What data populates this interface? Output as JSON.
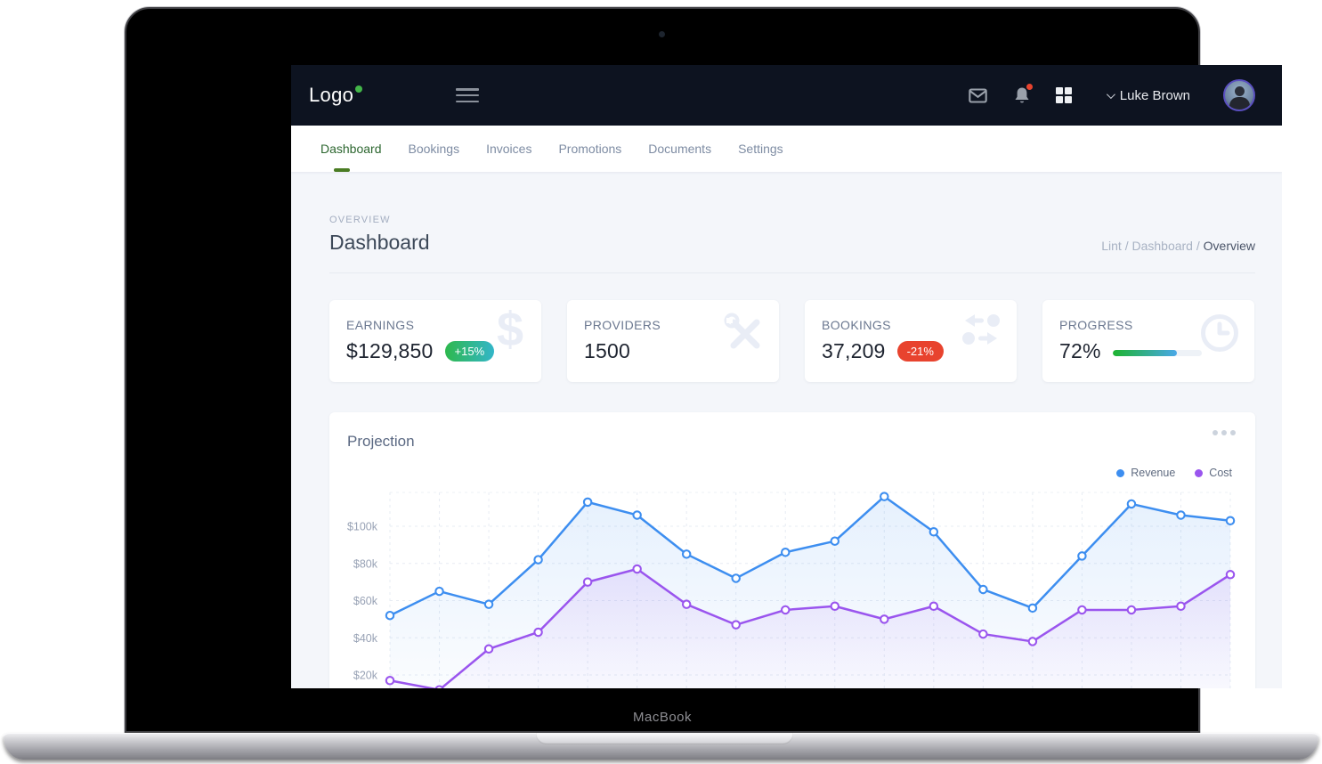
{
  "device": {
    "label": "MacBook"
  },
  "header": {
    "logo_text": "Logo",
    "user_name": "Luke Brown",
    "icons": [
      "mail-icon",
      "bell-icon",
      "apps-grid-icon",
      "chevron-down-icon",
      "avatar"
    ]
  },
  "nav": {
    "tabs": [
      {
        "label": "Dashboard",
        "active": true
      },
      {
        "label": "Bookings",
        "active": false
      },
      {
        "label": "Invoices",
        "active": false
      },
      {
        "label": "Promotions",
        "active": false
      },
      {
        "label": "Documents",
        "active": false
      },
      {
        "label": "Settings",
        "active": false
      }
    ]
  },
  "page": {
    "eyebrow": "OVERVIEW",
    "title": "Dashboard",
    "breadcrumb": {
      "trail": "Lint / Dashboard / ",
      "current": "Overview"
    }
  },
  "stats": {
    "cards": [
      {
        "label": "EARNINGS",
        "value": "$129,850",
        "badge": "+15%",
        "badge_type": "positive",
        "icon": "dollar-icon"
      },
      {
        "label": "PROVIDERS",
        "value": "1500",
        "icon": "tools-icon"
      },
      {
        "label": "BOOKINGS",
        "value": "37,209",
        "badge": "-21%",
        "badge_type": "negative",
        "icon": "exchange-arrows-icon"
      },
      {
        "label": "PROGRESS",
        "value": "72%",
        "progress_percent": 72,
        "icon": "clock-icon"
      }
    ]
  },
  "projection": {
    "title": "Projection",
    "menu_icon": "ellipsis-icon"
  },
  "chart_data": {
    "type": "line",
    "title": "Projection",
    "legend_position": "top-right",
    "grid": "dashed",
    "x_axis_labels_visible": false,
    "x_point_count": 18,
    "y_unit": "$k",
    "y_ticks": [
      {
        "label": "$100k",
        "value": 100
      },
      {
        "label": "$80k",
        "value": 80
      },
      {
        "label": "$60k",
        "value": 60
      },
      {
        "label": "$40k",
        "value": 40
      },
      {
        "label": "$20k",
        "value": 20
      }
    ],
    "series": [
      {
        "name": "Revenue",
        "color": "#3d8ef0",
        "values": [
          52,
          65,
          58,
          82,
          113,
          106,
          85,
          72,
          86,
          92,
          116,
          97,
          66,
          56,
          84,
          112,
          106,
          103
        ]
      },
      {
        "name": "Cost",
        "color": "#9a55ee",
        "values": [
          17,
          12,
          34,
          43,
          70,
          77,
          58,
          47,
          55,
          57,
          50,
          57,
          42,
          38,
          55,
          55,
          57,
          74
        ]
      }
    ]
  },
  "colors": {
    "header_bg": "#0d1320",
    "logo_dot": "#43b649",
    "active_tab": "#2c662f",
    "active_tab_underline": "#4a7c23",
    "badge_positive_from": "#2eb84d",
    "badge_positive_to": "#33b6c9",
    "badge_negative": "#e8432e",
    "progress_from": "#1db32f",
    "progress_to": "#4aa8e8",
    "revenue": "#3d8ef0",
    "cost": "#9a55ee"
  }
}
